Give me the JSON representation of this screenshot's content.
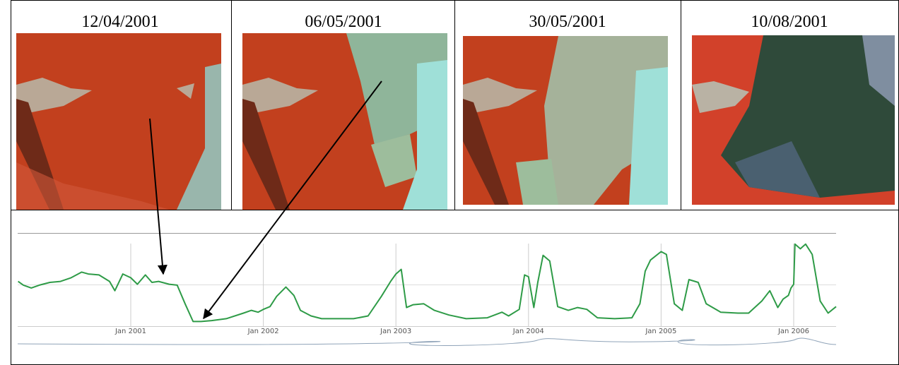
{
  "panels": [
    {
      "date": "12/04/2001"
    },
    {
      "date": "06/05/2001"
    },
    {
      "date": "30/05/2001"
    },
    {
      "date": "10/08/2001"
    }
  ],
  "chart_data": {
    "type": "line",
    "color": "#2e9b47",
    "x": [
      2000.15,
      2000.19,
      2000.25,
      2000.31,
      2000.39,
      2000.47,
      2000.55,
      2000.63,
      2000.68,
      2000.76,
      2000.84,
      2000.88,
      2000.94,
      2001.0,
      2001.05,
      2001.11,
      2001.16,
      2001.21,
      2001.29,
      2001.35,
      2001.41,
      2001.47,
      2001.53,
      2001.61,
      2001.72,
      2001.85,
      2001.91,
      2001.96,
      2002.0,
      2002.05,
      2002.1,
      2002.17,
      2002.23,
      2002.28,
      2002.36,
      2002.44,
      2002.57,
      2002.68,
      2002.79,
      2002.89,
      2002.96,
      2003.0,
      2003.04,
      2003.08,
      2003.13,
      2003.21,
      2003.29,
      2003.4,
      2003.53,
      2003.69,
      2003.8,
      2003.85,
      2003.93,
      2003.97,
      2004.0,
      2004.04,
      2004.07,
      2004.11,
      2004.16,
      2004.22,
      2004.3,
      2004.37,
      2004.44,
      2004.52,
      2004.65,
      2004.78,
      2004.84,
      2004.88,
      2004.92,
      2005.0,
      2005.04,
      2005.1,
      2005.16,
      2005.21,
      2005.28,
      2005.34,
      2005.45,
      2005.58,
      2005.66,
      2005.76,
      2005.82,
      2005.88,
      2005.92,
      2005.96,
      2005.98,
      2006.0,
      2006.01,
      2006.05,
      2006.09,
      2006.14,
      2006.2,
      2006.26,
      2006.32
    ],
    "values": [
      0.48,
      0.44,
      0.41,
      0.44,
      0.47,
      0.48,
      0.52,
      0.58,
      0.56,
      0.55,
      0.48,
      0.38,
      0.56,
      0.52,
      0.45,
      0.55,
      0.47,
      0.48,
      0.45,
      0.44,
      0.24,
      0.05,
      0.05,
      0.06,
      0.08,
      0.14,
      0.17,
      0.15,
      0.18,
      0.21,
      0.32,
      0.42,
      0.33,
      0.17,
      0.11,
      0.08,
      0.08,
      0.08,
      0.11,
      0.32,
      0.48,
      0.56,
      0.61,
      0.2,
      0.23,
      0.24,
      0.17,
      0.12,
      0.08,
      0.09,
      0.15,
      0.11,
      0.18,
      0.55,
      0.53,
      0.2,
      0.47,
      0.76,
      0.7,
      0.21,
      0.17,
      0.2,
      0.18,
      0.09,
      0.08,
      0.09,
      0.24,
      0.59,
      0.71,
      0.8,
      0.77,
      0.24,
      0.17,
      0.5,
      0.47,
      0.24,
      0.15,
      0.14,
      0.14,
      0.27,
      0.38,
      0.2,
      0.29,
      0.33,
      0.41,
      0.45,
      0.88,
      0.83,
      0.88,
      0.77,
      0.27,
      0.14,
      0.21
    ],
    "xlim": [
      2000.147,
      2006.32
    ],
    "ylim": [
      0,
      1
    ],
    "xticks": [
      {
        "value": 2001,
        "label": "Jan 2001"
      },
      {
        "value": 2002,
        "label": "Jan 2002"
      },
      {
        "value": 2003,
        "label": "Jan 2003"
      },
      {
        "value": 2004,
        "label": "Jan 2004"
      },
      {
        "value": 2005,
        "label": "Jan 2005"
      },
      {
        "value": 2006,
        "label": "Jan 2006"
      }
    ],
    "grid": true
  }
}
